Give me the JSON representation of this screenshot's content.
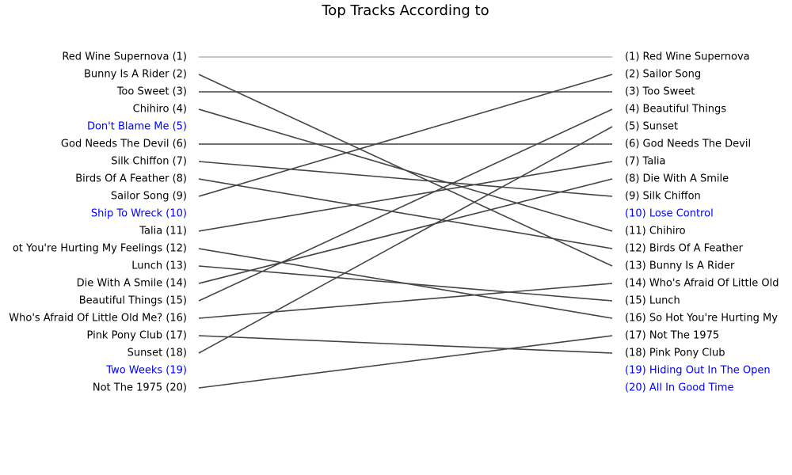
{
  "chart_data": {
    "type": "slope",
    "title": "Top Tracks According to",
    "left_labels": [
      "Red Wine Supernova (1)",
      "Bunny Is A Rider (2)",
      "Too Sweet (3)",
      "Chihiro (4)",
      "Don't Blame Me (5)",
      "God Needs The Devil (6)",
      "Silk Chiffon (7)",
      "Birds Of A Feather (8)",
      "Sailor Song (9)",
      "Ship To Wreck (10)",
      "Talia (11)",
      "ot You're Hurting My Feelings (12)",
      "Lunch (13)",
      "Die With A Smile (14)",
      "Beautiful Things (15)",
      "Who's Afraid Of Little Old Me? (16)",
      "Pink Pony Club (17)",
      "Sunset (18)",
      "Two Weeks (19)",
      "Not The 1975 (20)"
    ],
    "right_labels": [
      "(1) Red Wine Supernova",
      "(2) Sailor Song",
      "(3) Too Sweet",
      "(4) Beautiful Things",
      "(5) Sunset",
      "(6) God Needs The Devil",
      "(7) Talia",
      "(8) Die With A Smile",
      "(9) Silk Chiffon",
      "(10) Lose Control",
      "(11) Chihiro",
      "(12) Birds Of A Feather",
      "(13) Bunny Is A Rider",
      "(14) Who's Afraid Of Little Old",
      "(15) Lunch",
      "(16) So Hot You're Hurting My",
      "(17) Not The 1975",
      "(18) Pink Pony Club",
      "(19) Hiding Out In The Open",
      "(20) All In Good Time"
    ],
    "links": [
      {
        "from": 1,
        "to": 1
      },
      {
        "from": 2,
        "to": 13
      },
      {
        "from": 3,
        "to": 3
      },
      {
        "from": 4,
        "to": 11
      },
      {
        "from": 6,
        "to": 6
      },
      {
        "from": 7,
        "to": 9
      },
      {
        "from": 8,
        "to": 12
      },
      {
        "from": 9,
        "to": 2
      },
      {
        "from": 11,
        "to": 7
      },
      {
        "from": 12,
        "to": 16
      },
      {
        "from": 13,
        "to": 15
      },
      {
        "from": 14,
        "to": 8
      },
      {
        "from": 15,
        "to": 4
      },
      {
        "from": 16,
        "to": 14
      },
      {
        "from": 17,
        "to": 18
      },
      {
        "from": 18,
        "to": 5
      },
      {
        "from": 20,
        "to": 17
      }
    ],
    "line_color": "#444444",
    "label_color": "#000000",
    "unmatched_color": "#0000ff"
  }
}
